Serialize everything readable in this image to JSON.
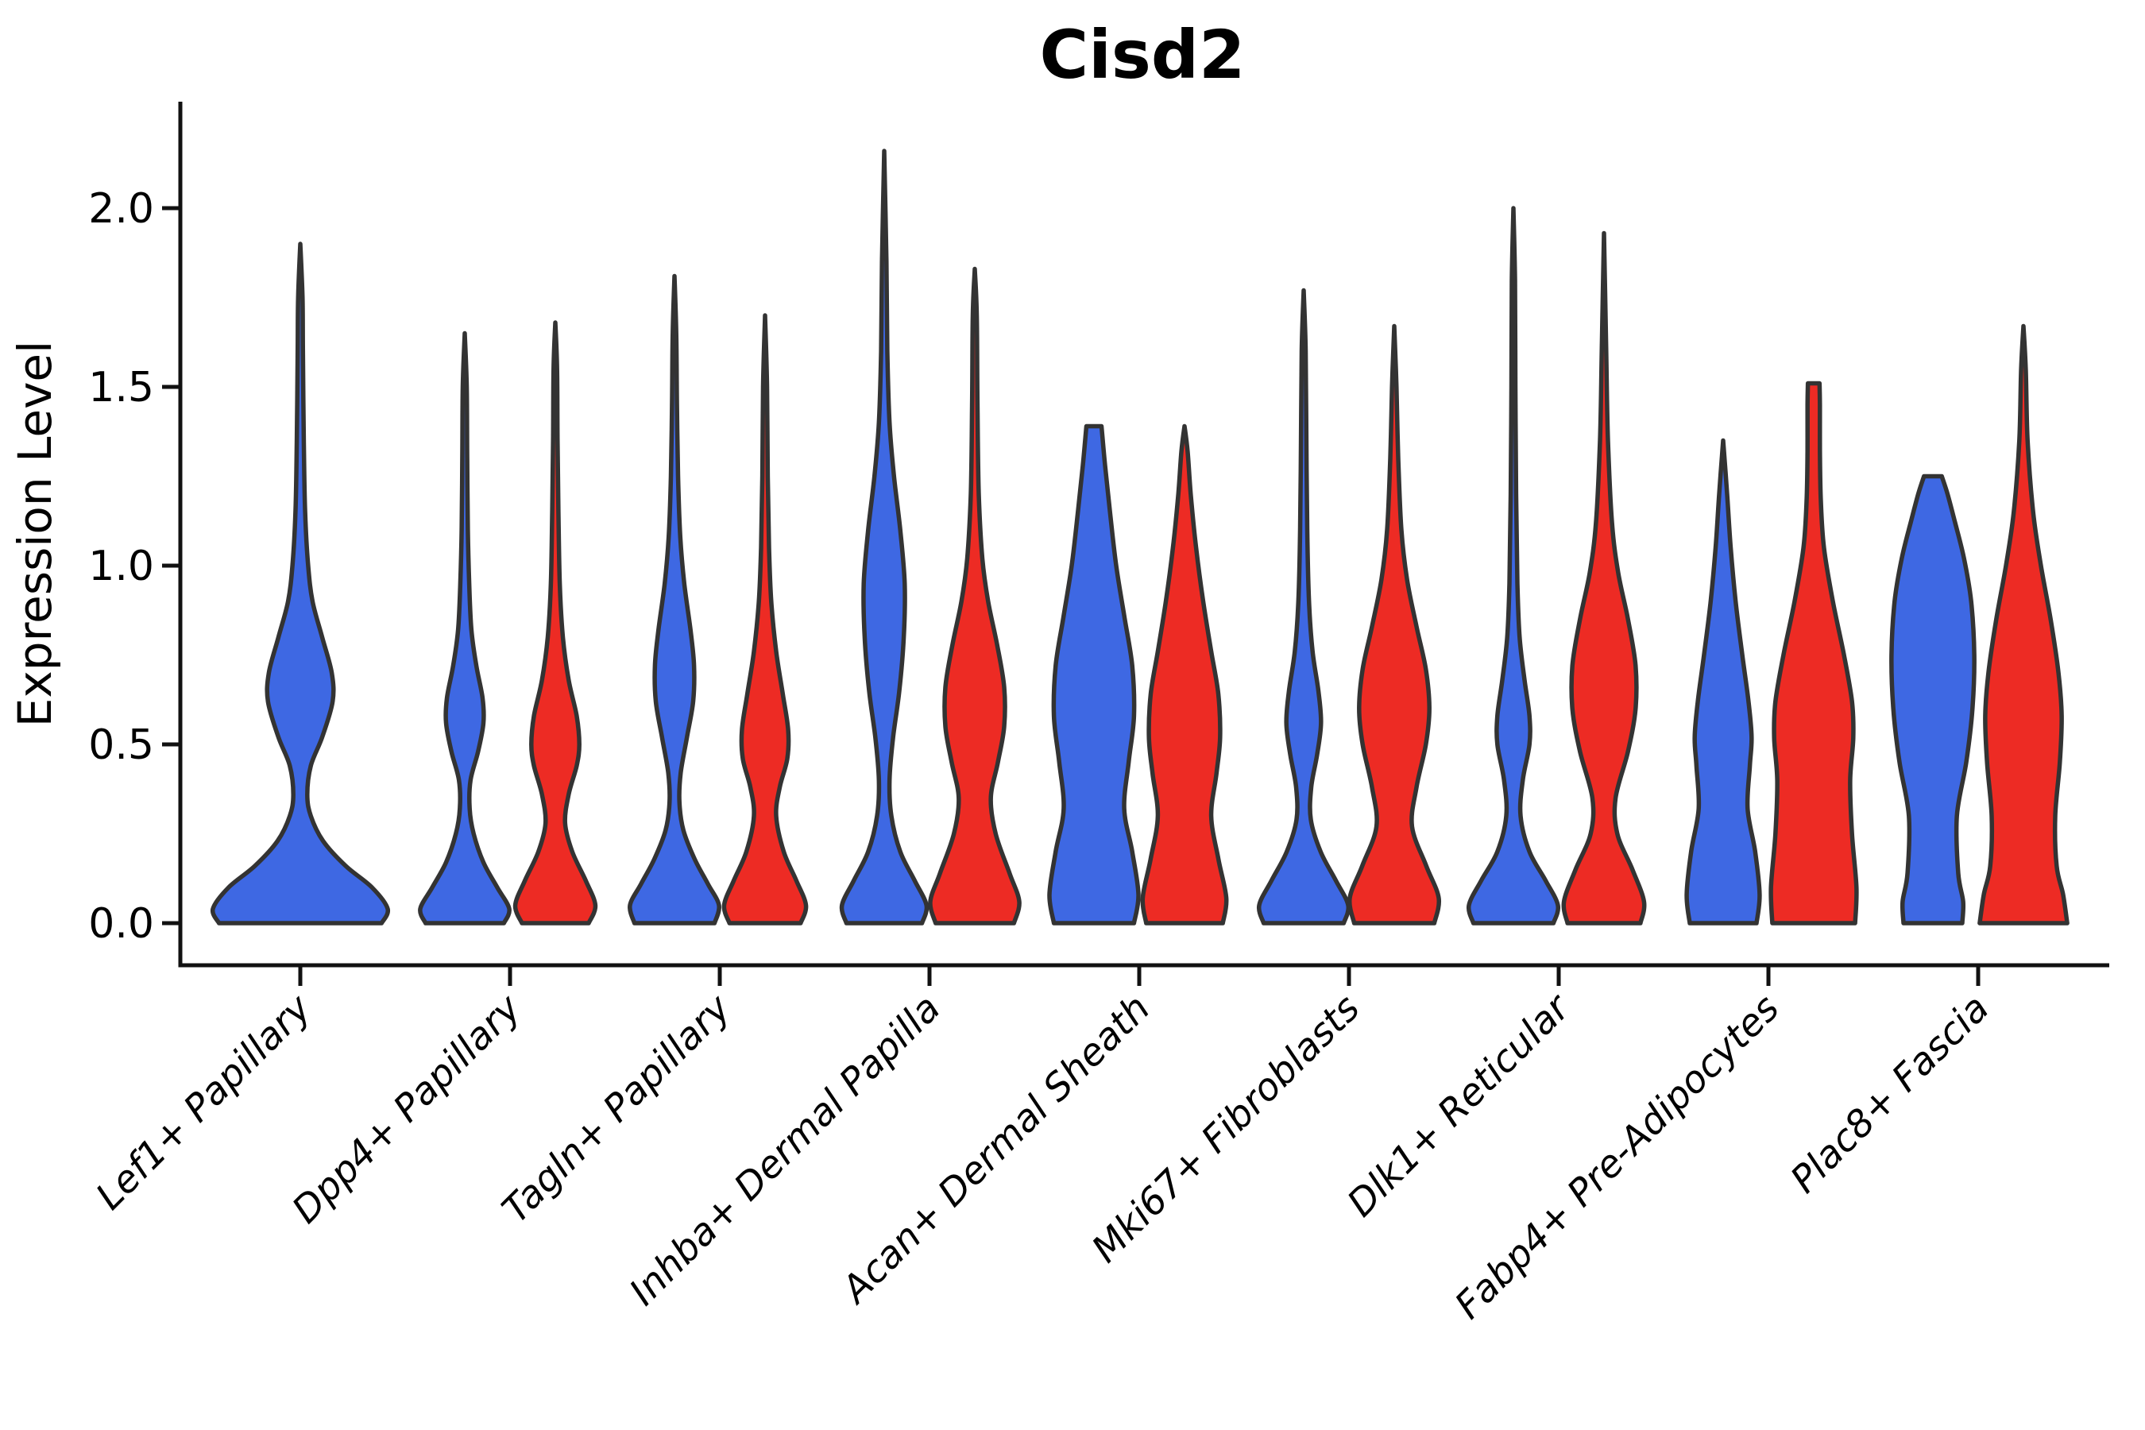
{
  "chart_data": {
    "type": "violin",
    "title": "Cisd2",
    "xlabel": "",
    "ylabel": "Expression Level",
    "ylim": [
      -0.12,
      2.3
    ],
    "yticks": [
      0.0,
      0.5,
      1.0,
      1.5,
      2.0
    ],
    "ytick_labels": [
      "0.0",
      "0.5",
      "1.0",
      "1.5",
      "2.0"
    ],
    "grid": "off",
    "legend_position": "none",
    "x_tick_rotation_deg": 45,
    "categories": [
      "Lef1+ Papillary",
      "Dpp4+ Papillary",
      "Tagln+ Papillary",
      "Inhba+ Dermal Papilla",
      "Acan+ Dermal Sheath",
      "Mki67+ Fibroblasts",
      "Dlk1+ Reticular",
      "Fabp4+ Pre-Adipocytes",
      "Plac8+ Fascia"
    ],
    "series": [
      {
        "name": "blue",
        "color": "#3E68E3"
      },
      {
        "name": "red",
        "color": "#ED2B24"
      }
    ],
    "outline_color": "#333333",
    "violins": [
      {
        "category_index": 0,
        "category": "Lef1+ Papillary",
        "series": 0,
        "side": "full",
        "max_value": 1.9,
        "tip_style": "point",
        "scale": 110,
        "profile": [
          [
            0,
            0.93
          ],
          [
            0.04,
            1.0
          ],
          [
            0.1,
            0.82
          ],
          [
            0.16,
            0.52
          ],
          [
            0.23,
            0.26
          ],
          [
            0.3,
            0.12
          ],
          [
            0.36,
            0.08
          ],
          [
            0.44,
            0.12
          ],
          [
            0.52,
            0.25
          ],
          [
            0.62,
            0.37
          ],
          [
            0.7,
            0.36
          ],
          [
            0.8,
            0.25
          ],
          [
            0.9,
            0.14
          ],
          [
            1.0,
            0.09
          ],
          [
            1.15,
            0.055
          ],
          [
            1.35,
            0.04
          ],
          [
            1.6,
            0.03
          ],
          [
            1.75,
            0.025
          ],
          [
            1.9,
            0
          ]
        ]
      },
      {
        "category_index": 1,
        "category": "Dpp4+ Papillary",
        "series": 0,
        "side": "left",
        "max_value": 1.65,
        "tip_style": "point",
        "scale": 56,
        "profile": [
          [
            0,
            0.88
          ],
          [
            0.04,
            1.0
          ],
          [
            0.1,
            0.73
          ],
          [
            0.17,
            0.42
          ],
          [
            0.25,
            0.2
          ],
          [
            0.32,
            0.11
          ],
          [
            0.4,
            0.13
          ],
          [
            0.48,
            0.3
          ],
          [
            0.56,
            0.42
          ],
          [
            0.63,
            0.4
          ],
          [
            0.72,
            0.26
          ],
          [
            0.82,
            0.15
          ],
          [
            0.95,
            0.1
          ],
          [
            1.1,
            0.07
          ],
          [
            1.3,
            0.055
          ],
          [
            1.5,
            0.045
          ],
          [
            1.65,
            0
          ]
        ]
      },
      {
        "category_index": 1,
        "category": "Dpp4+ Papillary",
        "series": 1,
        "side": "right",
        "max_value": 1.68,
        "tip_style": "point",
        "scale": 56,
        "profile": [
          [
            0,
            0.75
          ],
          [
            0.05,
            0.9
          ],
          [
            0.12,
            0.68
          ],
          [
            0.2,
            0.38
          ],
          [
            0.28,
            0.22
          ],
          [
            0.36,
            0.3
          ],
          [
            0.44,
            0.48
          ],
          [
            0.5,
            0.54
          ],
          [
            0.58,
            0.48
          ],
          [
            0.68,
            0.3
          ],
          [
            0.8,
            0.17
          ],
          [
            0.95,
            0.1
          ],
          [
            1.15,
            0.07
          ],
          [
            1.35,
            0.05
          ],
          [
            1.55,
            0.04
          ],
          [
            1.68,
            0
          ]
        ]
      },
      {
        "category_index": 2,
        "category": "Tagln+ Papillary",
        "series": 0,
        "side": "left",
        "max_value": 1.81,
        "tip_style": "point",
        "scale": 56,
        "profile": [
          [
            0,
            0.9
          ],
          [
            0.05,
            1.0
          ],
          [
            0.11,
            0.75
          ],
          [
            0.18,
            0.45
          ],
          [
            0.26,
            0.2
          ],
          [
            0.34,
            0.11
          ],
          [
            0.42,
            0.14
          ],
          [
            0.52,
            0.28
          ],
          [
            0.62,
            0.42
          ],
          [
            0.72,
            0.44
          ],
          [
            0.82,
            0.36
          ],
          [
            0.95,
            0.22
          ],
          [
            1.08,
            0.13
          ],
          [
            1.25,
            0.08
          ],
          [
            1.45,
            0.055
          ],
          [
            1.65,
            0.04
          ],
          [
            1.81,
            0
          ]
        ]
      },
      {
        "category_index": 2,
        "category": "Tagln+ Papillary",
        "series": 1,
        "side": "right",
        "max_value": 1.7,
        "tip_style": "point",
        "scale": 56,
        "profile": [
          [
            0,
            0.8
          ],
          [
            0.05,
            0.92
          ],
          [
            0.12,
            0.7
          ],
          [
            0.2,
            0.42
          ],
          [
            0.3,
            0.25
          ],
          [
            0.38,
            0.33
          ],
          [
            0.46,
            0.5
          ],
          [
            0.54,
            0.52
          ],
          [
            0.64,
            0.4
          ],
          [
            0.76,
            0.25
          ],
          [
            0.9,
            0.14
          ],
          [
            1.05,
            0.09
          ],
          [
            1.25,
            0.06
          ],
          [
            1.5,
            0.045
          ],
          [
            1.7,
            0
          ]
        ]
      },
      {
        "category_index": 3,
        "category": "Inhba+ Dermal Papilla",
        "series": 0,
        "side": "left",
        "max_value": 2.16,
        "tip_style": "point",
        "scale": 56,
        "profile": [
          [
            0,
            0.85
          ],
          [
            0.05,
            0.95
          ],
          [
            0.12,
            0.68
          ],
          [
            0.2,
            0.36
          ],
          [
            0.3,
            0.16
          ],
          [
            0.4,
            0.12
          ],
          [
            0.52,
            0.2
          ],
          [
            0.65,
            0.34
          ],
          [
            0.8,
            0.44
          ],
          [
            0.95,
            0.46
          ],
          [
            1.1,
            0.36
          ],
          [
            1.25,
            0.22
          ],
          [
            1.4,
            0.12
          ],
          [
            1.6,
            0.07
          ],
          [
            1.85,
            0.05
          ],
          [
            2.16,
            0
          ]
        ]
      },
      {
        "category_index": 3,
        "category": "Inhba+ Dermal Papilla",
        "series": 1,
        "side": "right",
        "max_value": 1.83,
        "tip_style": "point",
        "scale": 56,
        "profile": [
          [
            0,
            0.88
          ],
          [
            0.06,
            1.0
          ],
          [
            0.14,
            0.78
          ],
          [
            0.25,
            0.47
          ],
          [
            0.35,
            0.36
          ],
          [
            0.45,
            0.52
          ],
          [
            0.55,
            0.66
          ],
          [
            0.66,
            0.66
          ],
          [
            0.78,
            0.5
          ],
          [
            0.9,
            0.3
          ],
          [
            1.02,
            0.17
          ],
          [
            1.2,
            0.09
          ],
          [
            1.45,
            0.06
          ],
          [
            1.7,
            0.045
          ],
          [
            1.83,
            0
          ]
        ]
      },
      {
        "category_index": 4,
        "category": "Acan+ Dermal Sheath",
        "series": 0,
        "side": "left",
        "max_value": 1.39,
        "tip_style": "flat",
        "scale": 56,
        "profile": [
          [
            0,
            0.9
          ],
          [
            0.08,
            1.0
          ],
          [
            0.2,
            0.86
          ],
          [
            0.32,
            0.68
          ],
          [
            0.45,
            0.78
          ],
          [
            0.58,
            0.9
          ],
          [
            0.72,
            0.86
          ],
          [
            0.86,
            0.68
          ],
          [
            1.0,
            0.5
          ],
          [
            1.15,
            0.36
          ],
          [
            1.28,
            0.25
          ],
          [
            1.39,
            0.17
          ]
        ]
      },
      {
        "category_index": 4,
        "category": "Acan+ Dermal Sheath",
        "series": 1,
        "side": "right",
        "max_value": 1.39,
        "tip_style": "point",
        "scale": 56,
        "profile": [
          [
            0,
            0.86
          ],
          [
            0.07,
            0.94
          ],
          [
            0.18,
            0.76
          ],
          [
            0.3,
            0.6
          ],
          [
            0.42,
            0.72
          ],
          [
            0.52,
            0.8
          ],
          [
            0.64,
            0.76
          ],
          [
            0.76,
            0.6
          ],
          [
            0.9,
            0.42
          ],
          [
            1.05,
            0.26
          ],
          [
            1.2,
            0.14
          ],
          [
            1.32,
            0.07
          ],
          [
            1.39,
            0
          ]
        ]
      },
      {
        "category_index": 5,
        "category": "Mki67+ Fibroblasts",
        "series": 0,
        "side": "left",
        "max_value": 1.77,
        "tip_style": "point",
        "scale": 56,
        "profile": [
          [
            0,
            0.9
          ],
          [
            0.05,
            1.0
          ],
          [
            0.12,
            0.72
          ],
          [
            0.2,
            0.38
          ],
          [
            0.29,
            0.16
          ],
          [
            0.38,
            0.17
          ],
          [
            0.47,
            0.3
          ],
          [
            0.56,
            0.39
          ],
          [
            0.65,
            0.33
          ],
          [
            0.76,
            0.2
          ],
          [
            0.9,
            0.12
          ],
          [
            1.1,
            0.08
          ],
          [
            1.35,
            0.06
          ],
          [
            1.6,
            0.045
          ],
          [
            1.77,
            0
          ]
        ]
      },
      {
        "category_index": 5,
        "category": "Mki67+ Fibroblasts",
        "series": 1,
        "side": "right",
        "max_value": 1.67,
        "tip_style": "point",
        "scale": 56,
        "profile": [
          [
            0,
            0.9
          ],
          [
            0.07,
            1.0
          ],
          [
            0.16,
            0.72
          ],
          [
            0.27,
            0.4
          ],
          [
            0.38,
            0.5
          ],
          [
            0.5,
            0.71
          ],
          [
            0.6,
            0.79
          ],
          [
            0.71,
            0.71
          ],
          [
            0.83,
            0.5
          ],
          [
            0.96,
            0.29
          ],
          [
            1.1,
            0.16
          ],
          [
            1.3,
            0.09
          ],
          [
            1.5,
            0.05
          ],
          [
            1.67,
            0
          ]
        ]
      },
      {
        "category_index": 6,
        "category": "Dlk1+ Reticular",
        "series": 0,
        "side": "left",
        "max_value": 2.0,
        "tip_style": "point",
        "scale": 56,
        "profile": [
          [
            0,
            0.9
          ],
          [
            0.05,
            1.0
          ],
          [
            0.12,
            0.72
          ],
          [
            0.2,
            0.36
          ],
          [
            0.3,
            0.16
          ],
          [
            0.4,
            0.21
          ],
          [
            0.5,
            0.36
          ],
          [
            0.58,
            0.36
          ],
          [
            0.68,
            0.25
          ],
          [
            0.8,
            0.14
          ],
          [
            0.95,
            0.09
          ],
          [
            1.2,
            0.06
          ],
          [
            1.5,
            0.045
          ],
          [
            1.8,
            0.035
          ],
          [
            2.0,
            0
          ]
        ]
      },
      {
        "category_index": 6,
        "category": "Dlk1+ Reticular",
        "series": 1,
        "side": "right",
        "max_value": 1.93,
        "tip_style": "point",
        "scale": 56,
        "profile": [
          [
            0,
            0.82
          ],
          [
            0.06,
            0.9
          ],
          [
            0.15,
            0.64
          ],
          [
            0.25,
            0.3
          ],
          [
            0.35,
            0.26
          ],
          [
            0.48,
            0.54
          ],
          [
            0.6,
            0.71
          ],
          [
            0.72,
            0.71
          ],
          [
            0.85,
            0.54
          ],
          [
            0.98,
            0.32
          ],
          [
            1.12,
            0.18
          ],
          [
            1.35,
            0.09
          ],
          [
            1.6,
            0.05
          ],
          [
            1.93,
            0
          ]
        ]
      },
      {
        "category_index": 7,
        "category": "Fabp4+ Pre-Adipocytes",
        "series": 0,
        "side": "left",
        "max_value": 1.35,
        "tip_style": "point",
        "scale": 56,
        "profile": [
          [
            0,
            0.75
          ],
          [
            0.08,
            0.82
          ],
          [
            0.2,
            0.72
          ],
          [
            0.32,
            0.55
          ],
          [
            0.44,
            0.6
          ],
          [
            0.52,
            0.64
          ],
          [
            0.62,
            0.57
          ],
          [
            0.75,
            0.43
          ],
          [
            0.9,
            0.28
          ],
          [
            1.05,
            0.17
          ],
          [
            1.2,
            0.09
          ],
          [
            1.35,
            0
          ]
        ]
      },
      {
        "category_index": 7,
        "category": "Fabp4+ Pre-Adipocytes",
        "series": 1,
        "side": "right",
        "max_value": 1.51,
        "tip_style": "flat",
        "scale": 56,
        "profile": [
          [
            0,
            0.93
          ],
          [
            0.1,
            0.96
          ],
          [
            0.25,
            0.86
          ],
          [
            0.4,
            0.82
          ],
          [
            0.52,
            0.89
          ],
          [
            0.62,
            0.86
          ],
          [
            0.75,
            0.68
          ],
          [
            0.9,
            0.43
          ],
          [
            1.05,
            0.23
          ],
          [
            1.18,
            0.16
          ],
          [
            1.32,
            0.14
          ],
          [
            1.45,
            0.14
          ],
          [
            1.51,
            0.13
          ]
        ]
      },
      {
        "category_index": 8,
        "category": "Plac8+ Fascia",
        "series": 0,
        "side": "left",
        "max_value": 1.25,
        "tip_style": "flat",
        "scale": 56,
        "profile": [
          [
            0,
            0.66
          ],
          [
            0.06,
            0.68
          ],
          [
            0.14,
            0.57
          ],
          [
            0.3,
            0.54
          ],
          [
            0.45,
            0.75
          ],
          [
            0.6,
            0.89
          ],
          [
            0.75,
            0.93
          ],
          [
            0.9,
            0.86
          ],
          [
            1.02,
            0.7
          ],
          [
            1.12,
            0.5
          ],
          [
            1.2,
            0.33
          ],
          [
            1.25,
            0.2
          ]
        ]
      },
      {
        "category_index": 8,
        "category": "Plac8+ Fascia",
        "series": 1,
        "side": "right",
        "max_value": 1.67,
        "tip_style": "point",
        "scale": 58,
        "profile": [
          [
            0,
            0.95
          ],
          [
            0.08,
            0.86
          ],
          [
            0.16,
            0.72
          ],
          [
            0.3,
            0.69
          ],
          [
            0.45,
            0.79
          ],
          [
            0.58,
            0.83
          ],
          [
            0.7,
            0.76
          ],
          [
            0.85,
            0.59
          ],
          [
            1.0,
            0.38
          ],
          [
            1.15,
            0.21
          ],
          [
            1.35,
            0.09
          ],
          [
            1.55,
            0.05
          ],
          [
            1.67,
            0
          ]
        ]
      }
    ]
  }
}
